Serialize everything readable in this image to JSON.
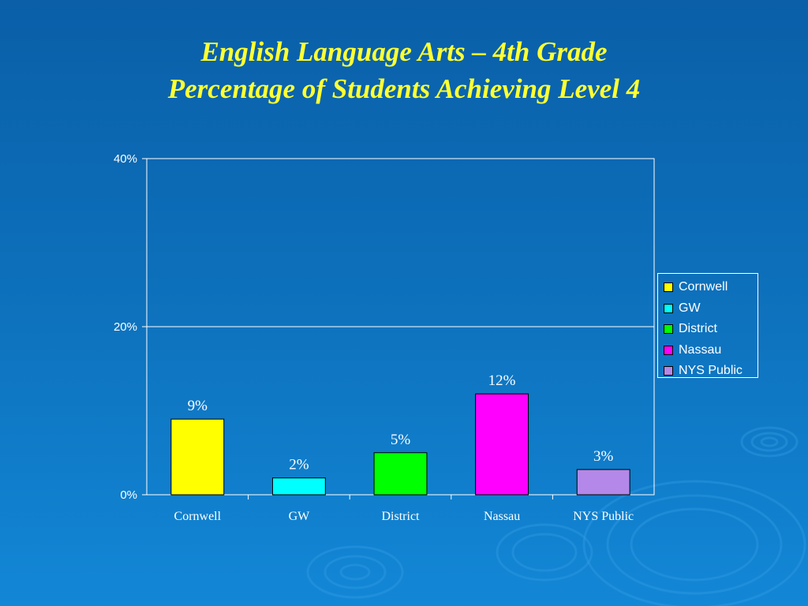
{
  "title": {
    "line1": "English Language Arts – 4th Grade",
    "line2": "Percentage of Students Achieving Level 4"
  },
  "chart_data": {
    "type": "bar",
    "title": "English Language Arts – 4th Grade Percentage of Students Achieving Level 4",
    "categories": [
      "Cornwell",
      "GW",
      "District",
      "Nassau",
      "NYS Public"
    ],
    "values": [
      9,
      2,
      5,
      12,
      3
    ],
    "data_labels": [
      "9%",
      "2%",
      "5%",
      "12%",
      "3%"
    ],
    "colors": [
      "#ffff00",
      "#00ffff",
      "#00ff00",
      "#ff00ff",
      "#b388e8"
    ],
    "ylim": [
      0,
      40
    ],
    "yticks": [
      0,
      20,
      40
    ],
    "ytick_labels": [
      "0%",
      "20%",
      "40%"
    ],
    "grid": true,
    "legend_position": "right",
    "legend": [
      "Cornwell",
      "GW",
      "District",
      "Nassau",
      "NYS Public"
    ]
  }
}
